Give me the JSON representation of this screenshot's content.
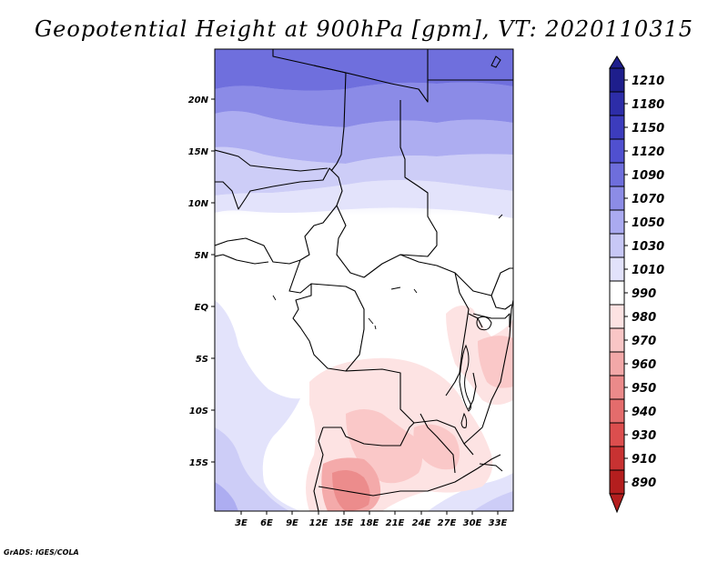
{
  "title": "Geopotential Height at 900hPa [gpm], VT: 2020110315",
  "credit": "GrADS: IGES/COLA",
  "map": {
    "lat_labels": [
      "20N",
      "15N",
      "10N",
      "5N",
      "EQ",
      "5S",
      "10S",
      "15S"
    ],
    "lon_labels": [
      "3E",
      "6E",
      "9E",
      "12E",
      "15E",
      "18E",
      "21E",
      "24E",
      "27E",
      "30E",
      "33E"
    ]
  },
  "colorbar": {
    "levels": [
      "1210",
      "1180",
      "1150",
      "1120",
      "1090",
      "1070",
      "1050",
      "1030",
      "1010",
      "990",
      "980",
      "970",
      "960",
      "950",
      "940",
      "930",
      "910",
      "890"
    ],
    "colors": [
      "#1e1e8c",
      "#2d2da8",
      "#3c3cbd",
      "#5050d0",
      "#6e6edc",
      "#8c8ce6",
      "#aaaaf0",
      "#c8c8f6",
      "#e2e2fb",
      "#ffffff",
      "#fde2e2",
      "#f9c6c6",
      "#f2a8a8",
      "#eb8a8a",
      "#e46c6c",
      "#dc4e4e",
      "#c83232",
      "#b41e1e"
    ]
  }
}
